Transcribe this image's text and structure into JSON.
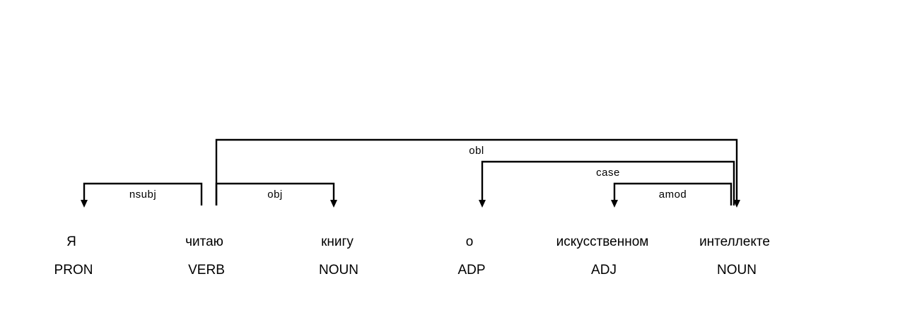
{
  "tokens": [
    {
      "word": "Я",
      "tag": "PRON"
    },
    {
      "word": "читаю",
      "tag": "VERB"
    },
    {
      "word": "книгу",
      "tag": "NOUN"
    },
    {
      "word": "о",
      "tag": "ADP"
    },
    {
      "word": "искусственном",
      "tag": "ADJ"
    },
    {
      "word": "интеллекте",
      "tag": "NOUN"
    }
  ],
  "arcs": [
    {
      "label": "nsubj",
      "head": 1,
      "dependent": 0
    },
    {
      "label": "obj",
      "head": 1,
      "dependent": 2
    },
    {
      "label": "obl",
      "head": 1,
      "dependent": 5
    },
    {
      "label": "case",
      "head": 5,
      "dependent": 3
    },
    {
      "label": "amod",
      "head": 5,
      "dependent": 4
    }
  ]
}
